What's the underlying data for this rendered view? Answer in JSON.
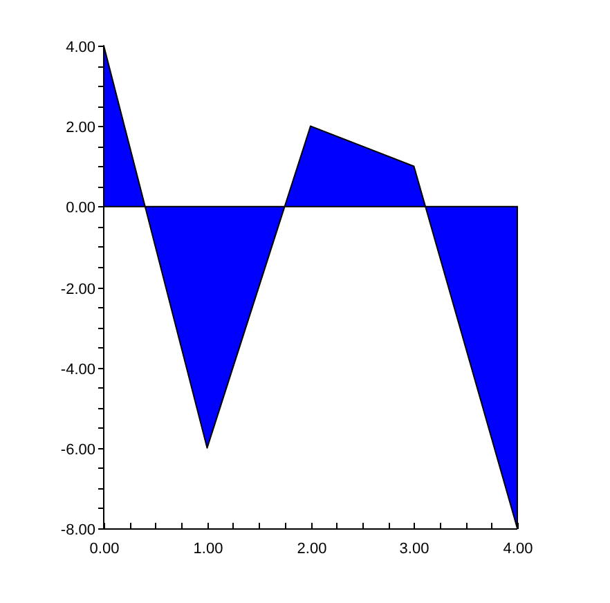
{
  "chart_data": {
    "type": "area",
    "x": [
      0,
      1,
      2,
      3,
      4
    ],
    "series": [
      {
        "color": "#0000ff",
        "values": [
          4,
          -6,
          2,
          1,
          -8
        ]
      }
    ],
    "xlim": [
      0,
      4
    ],
    "ylim": [
      -8,
      4
    ],
    "xticks": [
      {
        "value": 0,
        "label": "0.00"
      },
      {
        "value": 0.25,
        "label": null
      },
      {
        "value": 0.5,
        "label": null
      },
      {
        "value": 0.75,
        "label": null
      },
      {
        "value": 1,
        "label": "1.00"
      },
      {
        "value": 1.25,
        "label": null
      },
      {
        "value": 1.5,
        "label": null
      },
      {
        "value": 1.75,
        "label": null
      },
      {
        "value": 2,
        "label": "2.00"
      },
      {
        "value": 2.25,
        "label": null
      },
      {
        "value": 2.5,
        "label": null
      },
      {
        "value": 2.75,
        "label": null
      },
      {
        "value": 3,
        "label": "3.00"
      },
      {
        "value": 3.25,
        "label": null
      },
      {
        "value": 3.5,
        "label": null
      },
      {
        "value": 3.75,
        "label": null
      },
      {
        "value": 4,
        "label": "4.00"
      }
    ],
    "yticks": [
      {
        "value": -8,
        "label": "-8.00"
      },
      {
        "value": -7.5,
        "label": null
      },
      {
        "value": -7,
        "label": null
      },
      {
        "value": -6.5,
        "label": null
      },
      {
        "value": -6,
        "label": "-6.00"
      },
      {
        "value": -5.5,
        "label": null
      },
      {
        "value": -5,
        "label": null
      },
      {
        "value": -4.5,
        "label": null
      },
      {
        "value": -4,
        "label": "-4.00"
      },
      {
        "value": -3.5,
        "label": null
      },
      {
        "value": -3,
        "label": null
      },
      {
        "value": -2.5,
        "label": null
      },
      {
        "value": -2,
        "label": "-2.00"
      },
      {
        "value": -1.5,
        "label": null
      },
      {
        "value": -1,
        "label": null
      },
      {
        "value": -0.5,
        "label": null
      },
      {
        "value": 0,
        "label": "0.00"
      },
      {
        "value": 0.5,
        "label": null
      },
      {
        "value": 1,
        "label": null
      },
      {
        "value": 1.5,
        "label": null
      },
      {
        "value": 2,
        "label": "2.00"
      },
      {
        "value": 2.5,
        "label": null
      },
      {
        "value": 3,
        "label": null
      },
      {
        "value": 3.5,
        "label": null
      },
      {
        "value": 4,
        "label": "4.00"
      }
    ]
  }
}
